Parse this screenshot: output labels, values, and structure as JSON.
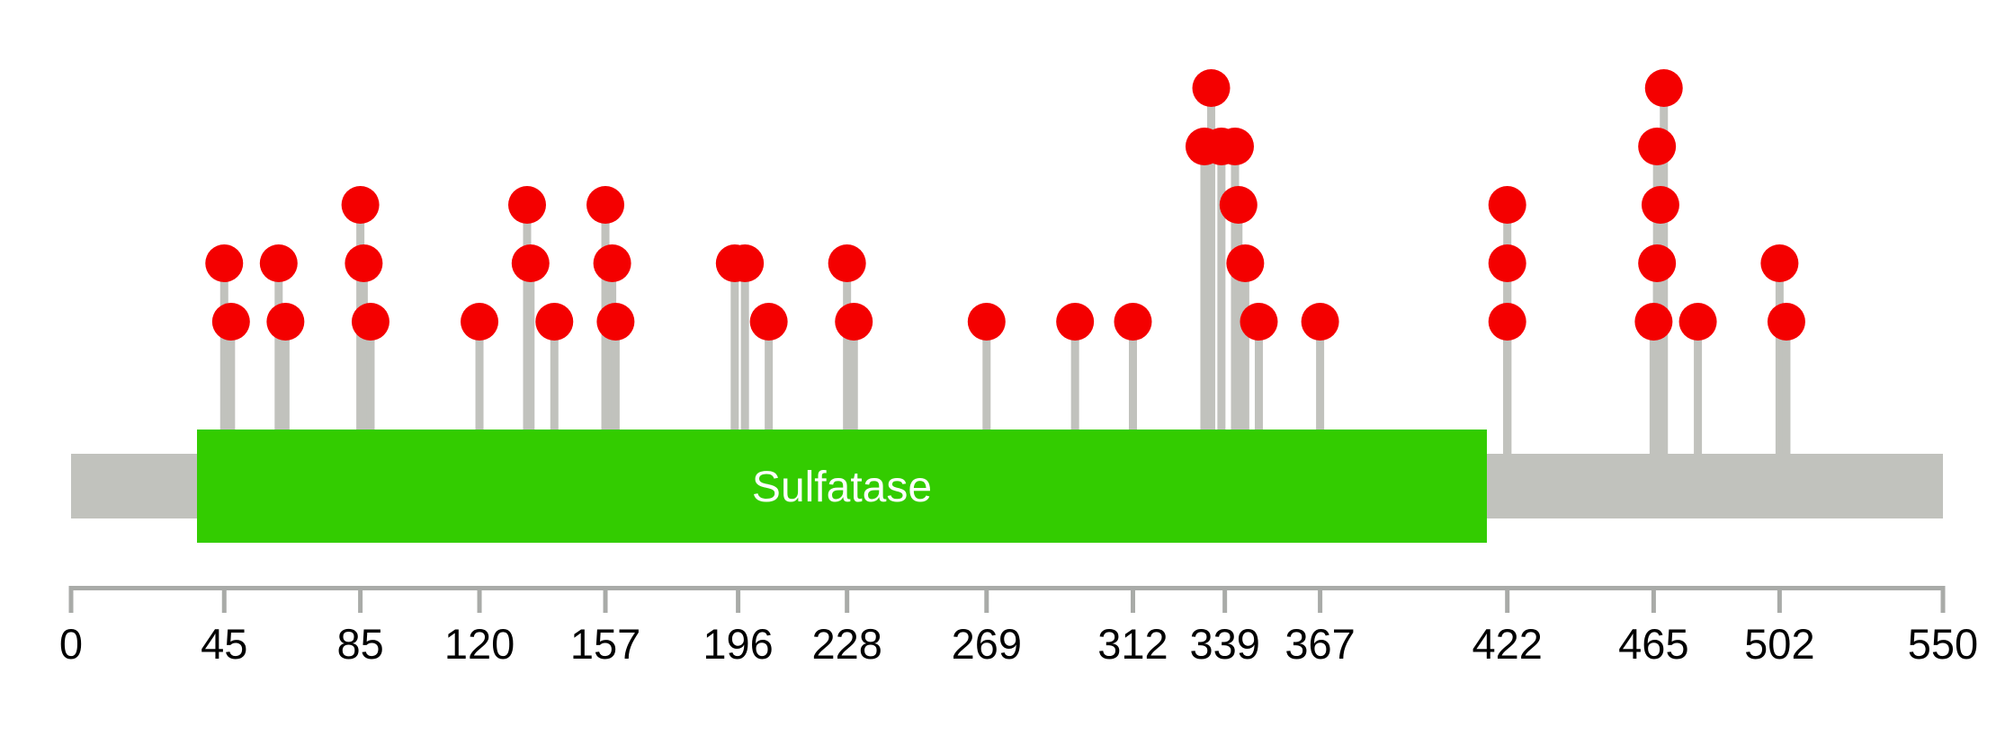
{
  "chart_data": {
    "type": "lollipop",
    "title": "",
    "xlabel": "",
    "ylabel": "",
    "protein_length": 550,
    "x_axis": {
      "min": 0,
      "max": 550,
      "tick_values": [
        0,
        45,
        85,
        120,
        157,
        196,
        228,
        269,
        312,
        339,
        367,
        422,
        465,
        502,
        550
      ]
    },
    "domain": {
      "name": "Sulfatase",
      "start": 37,
      "end": 416,
      "color": "#33CC00",
      "text_color": "#ffffff"
    },
    "backbone": {
      "start": 0,
      "end": 550,
      "color": "#C1C2BD"
    },
    "mutations": [
      {
        "pos": 45,
        "level": 2
      },
      {
        "pos": 47,
        "level": 1
      },
      {
        "pos": 61,
        "level": 2
      },
      {
        "pos": 63,
        "level": 1
      },
      {
        "pos": 85,
        "level": 3
      },
      {
        "pos": 86,
        "level": 2
      },
      {
        "pos": 88,
        "level": 1
      },
      {
        "pos": 120,
        "level": 1
      },
      {
        "pos": 134,
        "level": 3
      },
      {
        "pos": 135,
        "level": 2
      },
      {
        "pos": 142,
        "level": 1
      },
      {
        "pos": 157,
        "level": 3
      },
      {
        "pos": 159,
        "level": 2
      },
      {
        "pos": 160,
        "level": 1
      },
      {
        "pos": 195,
        "level": 2
      },
      {
        "pos": 198,
        "level": 2
      },
      {
        "pos": 205,
        "level": 1
      },
      {
        "pos": 228,
        "level": 2
      },
      {
        "pos": 230,
        "level": 1
      },
      {
        "pos": 269,
        "level": 1
      },
      {
        "pos": 295,
        "level": 1
      },
      {
        "pos": 312,
        "level": 1
      },
      {
        "pos": 333,
        "level": 4
      },
      {
        "pos": 335,
        "level": 5
      },
      {
        "pos": 338,
        "level": 4
      },
      {
        "pos": 342,
        "level": 4
      },
      {
        "pos": 343,
        "level": 3
      },
      {
        "pos": 345,
        "level": 2
      },
      {
        "pos": 349,
        "level": 1
      },
      {
        "pos": 367,
        "level": 1
      },
      {
        "pos": 422,
        "level": 3
      },
      {
        "pos": 422,
        "level": 2
      },
      {
        "pos": 422,
        "level": 1
      },
      {
        "pos": 465,
        "level": 1
      },
      {
        "pos": 466,
        "level": 2
      },
      {
        "pos": 466,
        "level": 4
      },
      {
        "pos": 467,
        "level": 3
      },
      {
        "pos": 468,
        "level": 5
      },
      {
        "pos": 478,
        "level": 1
      },
      {
        "pos": 502,
        "level": 2
      },
      {
        "pos": 504,
        "level": 1
      }
    ],
    "colors": {
      "mutation": "#F40000",
      "stem": "#C1C2BD",
      "axis": "#A9ABA8",
      "tick_text": "#000000",
      "background": "#ffffff"
    },
    "legend": null,
    "grid": false
  }
}
